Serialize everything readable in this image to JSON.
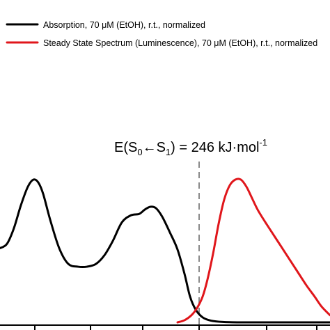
{
  "colors": {
    "absorption": "#000000",
    "luminescence": "#e0161b",
    "marker": "#8a8a8a",
    "axis": "#000000"
  },
  "legend": {
    "absorption_label": "Absorption, 70 μM (EtOH), r.t., normalized",
    "luminescence_label": "Steady State Spectrum (Luminescence), 70 μM (EtOH), r.t., normalized"
  },
  "annotation": {
    "prefix": "E(S",
    "sub0": "0",
    "arrow": "←S",
    "sub1": "1",
    "suffix": ") = 246 kJ·mol",
    "sup": "-1"
  },
  "chart_data": {
    "type": "line",
    "title": "",
    "xlabel": "",
    "ylabel": "",
    "xlim": [
      0,
      474
    ],
    "ylim": [
      0,
      1.0
    ],
    "grid": false,
    "legend_position": "top-left",
    "marker_x": 286,
    "series": [
      {
        "name": "Absorption, 70 μM (EtOH), r.t., normalized",
        "color": "#000000",
        "points": [
          [
            0,
            0.52
          ],
          [
            10,
            0.55
          ],
          [
            20,
            0.66
          ],
          [
            30,
            0.82
          ],
          [
            40,
            0.95
          ],
          [
            48,
            1.0
          ],
          [
            55,
            0.98
          ],
          [
            62,
            0.9
          ],
          [
            72,
            0.72
          ],
          [
            85,
            0.52
          ],
          [
            98,
            0.41
          ],
          [
            112,
            0.39
          ],
          [
            125,
            0.39
          ],
          [
            138,
            0.41
          ],
          [
            150,
            0.47
          ],
          [
            162,
            0.57
          ],
          [
            175,
            0.7
          ],
          [
            188,
            0.75
          ],
          [
            200,
            0.76
          ],
          [
            208,
            0.79
          ],
          [
            216,
            0.81
          ],
          [
            224,
            0.8
          ],
          [
            233,
            0.74
          ],
          [
            244,
            0.63
          ],
          [
            255,
            0.51
          ],
          [
            265,
            0.34
          ],
          [
            273,
            0.18
          ],
          [
            281,
            0.09
          ],
          [
            291,
            0.035
          ],
          [
            303,
            0.012
          ],
          [
            320,
            0.003
          ],
          [
            345,
            0.0
          ],
          [
            380,
            0.0
          ],
          [
            420,
            0.0
          ],
          [
            474,
            0.0
          ]
        ]
      },
      {
        "name": "Steady State Spectrum (Luminescence), 70 μM (EtOH), r.t., normalized",
        "color": "#e0161b",
        "points": [
          [
            255,
            0.0
          ],
          [
            265,
            0.015
          ],
          [
            275,
            0.05
          ],
          [
            283,
            0.1
          ],
          [
            291,
            0.18
          ],
          [
            298,
            0.3
          ],
          [
            306,
            0.48
          ],
          [
            314,
            0.69
          ],
          [
            322,
            0.86
          ],
          [
            330,
            0.96
          ],
          [
            338,
            1.0
          ],
          [
            346,
            1.0
          ],
          [
            354,
            0.95
          ],
          [
            362,
            0.87
          ],
          [
            370,
            0.79
          ],
          [
            380,
            0.71
          ],
          [
            392,
            0.62
          ],
          [
            404,
            0.53
          ],
          [
            416,
            0.44
          ],
          [
            428,
            0.35
          ],
          [
            440,
            0.26
          ],
          [
            452,
            0.18
          ],
          [
            462,
            0.11
          ],
          [
            474,
            0.05
          ]
        ]
      }
    ],
    "ticks_x": [
      50,
      130,
      205,
      286,
      383,
      455
    ]
  }
}
